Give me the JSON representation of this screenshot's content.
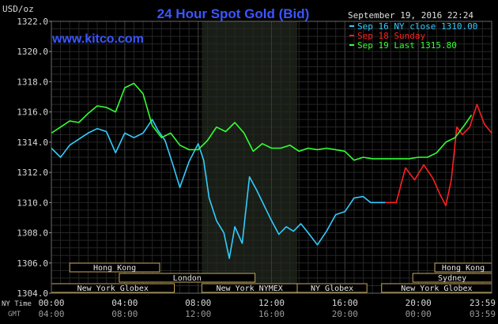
{
  "chart_data": {
    "type": "line",
    "title": "24 Hour Spot Gold (Bid)",
    "watermark": "www.kitco.com",
    "datetime": "September 19, 2016 22:24",
    "units": "USD/oz",
    "ylim": [
      1304,
      1322
    ],
    "yticks": [
      "1322.0",
      "1320.0",
      "1318.0",
      "1316.0",
      "1314.0",
      "1312.0",
      "1310.0",
      "1308.0",
      "1306.0",
      "1304.0"
    ],
    "x_hours": [
      0,
      4,
      8,
      12,
      16,
      20,
      24
    ],
    "xticks_ny": [
      "00:00",
      "04:00",
      "08:00",
      "12:00",
      "16:00",
      "20:00",
      "23:59"
    ],
    "xticks_gmt": [
      "04:00",
      "08:00",
      "12:00",
      "16:00",
      "20:00",
      "00:00",
      "03:59"
    ],
    "x_axis_left_labels": [
      "NY Time",
      "GMT"
    ],
    "shaded_session_hours": [
      8.2,
      13.4
    ],
    "grid": true,
    "legend_position": "top-right",
    "legend": [
      {
        "label": "Sep 16 NY close 1310.00",
        "color": "#33ccff"
      },
      {
        "label": "Sep 18 Sunday",
        "color": "#ff2020"
      },
      {
        "label": "Sep 19 Last 1315.80",
        "color": "#33ff33"
      }
    ],
    "sessions": [
      {
        "label": "Hong Kong",
        "start": 1.0,
        "end": 5.9
      },
      {
        "label": "Hong Kong",
        "start": 20.9,
        "end": 24.0
      },
      {
        "label": "London",
        "start": 3.7,
        "end": 11.1
      },
      {
        "label": "Sydney",
        "start": 19.7,
        "end": 24.0
      },
      {
        "label": "New York Globex",
        "start": 0.0,
        "end": 6.7
      },
      {
        "label": "New York NYMEX",
        "start": 8.2,
        "end": 13.4
      },
      {
        "label": "NY Globex",
        "start": 13.4,
        "end": 17.2
      },
      {
        "label": "New York Globex",
        "start": 18.0,
        "end": 24.0
      }
    ],
    "series": [
      {
        "name": "Sep 16 NY close 1310.00",
        "color": "#33ccff",
        "x": [
          0,
          0.5,
          1,
          1.5,
          2,
          2.5,
          3,
          3.5,
          4,
          4.5,
          5,
          5.5,
          5.8,
          6.2,
          6.6,
          7,
          7.5,
          8,
          8.3,
          8.6,
          9,
          9.4,
          9.7,
          10,
          10.4,
          10.8,
          11.2,
          11.6,
          12,
          12.4,
          12.8,
          13.2,
          13.6,
          14,
          14.5,
          15,
          15.5,
          16,
          16.5,
          17,
          17.4,
          17.8,
          18.2
        ],
        "y": [
          1313.6,
          1313.0,
          1313.8,
          1314.2,
          1314.6,
          1314.9,
          1314.7,
          1313.3,
          1314.6,
          1314.3,
          1314.6,
          1315.5,
          1314.8,
          1314.1,
          1312.6,
          1311.0,
          1312.7,
          1313.9,
          1312.8,
          1310.3,
          1308.8,
          1308.0,
          1306.3,
          1308.4,
          1307.3,
          1311.7,
          1310.8,
          1309.8,
          1308.8,
          1307.9,
          1308.4,
          1308.1,
          1308.6,
          1308.0,
          1307.2,
          1308.1,
          1309.2,
          1309.4,
          1310.3,
          1310.4,
          1310.0,
          1310.0,
          1310.0
        ]
      },
      {
        "name": "Sep 18 Sunday",
        "color": "#ff2020",
        "x": [
          18.2,
          18.8,
          19.3,
          19.8,
          20.3,
          20.8,
          21.2,
          21.5,
          21.8,
          22.1,
          22.4,
          22.8,
          23.2,
          23.6,
          24.0
        ],
        "y": [
          1310.0,
          1310.0,
          1312.3,
          1311.5,
          1312.5,
          1311.6,
          1310.5,
          1309.8,
          1311.5,
          1315.0,
          1314.5,
          1315.0,
          1316.5,
          1315.2,
          1314.6
        ]
      },
      {
        "name": "Sep 19 Last 1315.80",
        "color": "#33ff33",
        "x": [
          0,
          0.5,
          1,
          1.5,
          2,
          2.5,
          3,
          3.5,
          4,
          4.5,
          5,
          5.5,
          6,
          6.5,
          7,
          7.5,
          8,
          8.5,
          9,
          9.5,
          10,
          10.5,
          11,
          11.5,
          12,
          12.5,
          13,
          13.5,
          14,
          14.5,
          15,
          15.5,
          16,
          16.5,
          17,
          17.5,
          18,
          18.5,
          19,
          19.5,
          20,
          20.5,
          21,
          21.5,
          22,
          22.5,
          22.9
        ],
        "y": [
          1314.6,
          1315.0,
          1315.4,
          1315.3,
          1315.9,
          1316.4,
          1316.3,
          1316.0,
          1317.6,
          1317.9,
          1317.2,
          1315.1,
          1314.3,
          1314.6,
          1313.8,
          1313.5,
          1313.5,
          1314.1,
          1315.0,
          1314.7,
          1315.3,
          1314.6,
          1313.4,
          1313.9,
          1313.6,
          1313.6,
          1313.8,
          1313.4,
          1313.6,
          1313.5,
          1313.6,
          1313.5,
          1313.4,
          1312.8,
          1313.0,
          1312.9,
          1312.9,
          1312.9,
          1312.9,
          1312.9,
          1313.0,
          1313.0,
          1313.3,
          1314.0,
          1314.3,
          1315.1,
          1315.8
        ]
      }
    ]
  }
}
